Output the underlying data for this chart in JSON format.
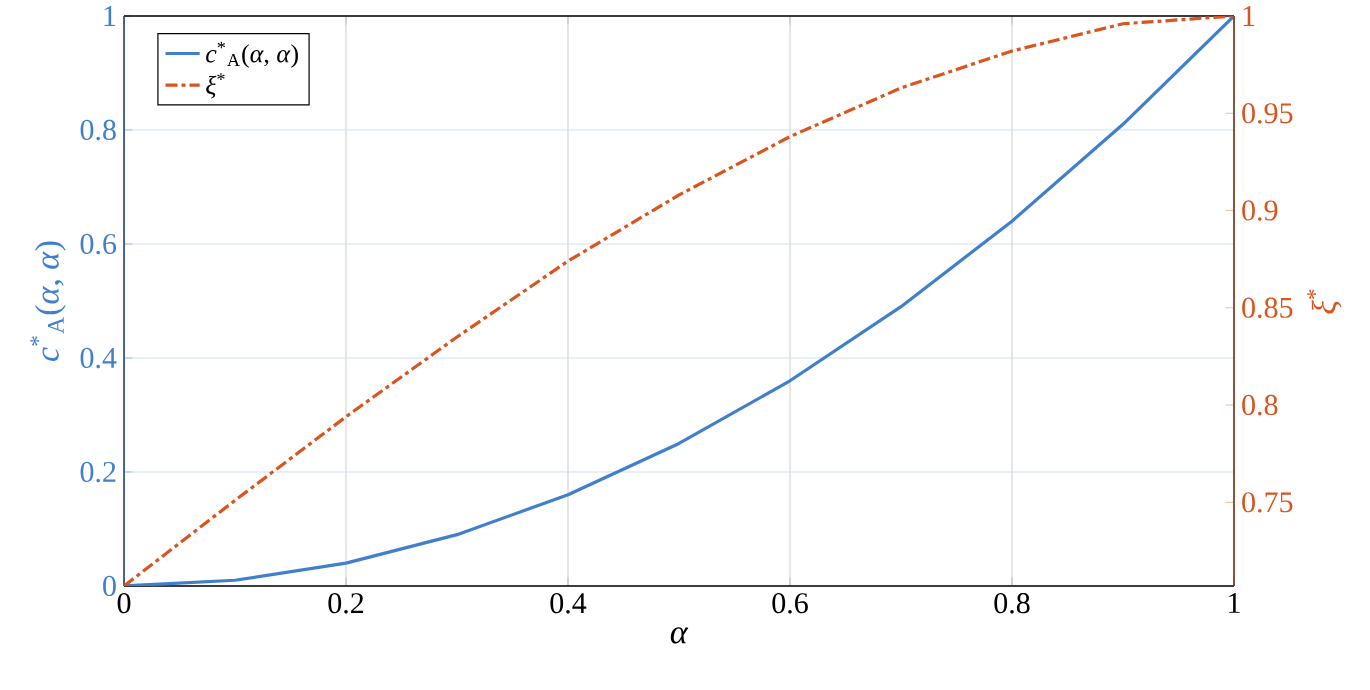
{
  "chart_data": {
    "type": "line",
    "xlabel": "*α*",
    "ylabel": "*c*$^{*}$$_{A}$(*α*, *α*)",
    "y2label": "*ξ*$^{*}$",
    "x": [
      0,
      0.1,
      0.2,
      0.3,
      0.4,
      0.5,
      0.6,
      0.7,
      0.8,
      0.9,
      1
    ],
    "series": [
      {
        "name": "*c*$^{*}$$_{A}$(*α*, *α*)",
        "color": "#3f7fcb",
        "line_style": "solid",
        "values": [
          0,
          0.01,
          0.04,
          0.09,
          0.16,
          0.25,
          0.36,
          0.49,
          0.64,
          0.81,
          1
        ]
      },
      {
        "name": "*ξ*$^{*}$",
        "color": "#d9541e",
        "line_style": "dashdot",
        "axis": "y2",
        "values": [
          0.707,
          0.751,
          0.794,
          0.835,
          0.874,
          0.908,
          0.938,
          0.963,
          0.982,
          0.996,
          1
        ]
      }
    ],
    "xlim": [
      0,
      1
    ],
    "xticks": [
      0,
      0.2,
      0.4,
      0.6,
      0.8,
      1
    ],
    "ylim": [
      0,
      1
    ],
    "yticks": [
      0,
      0.2,
      0.4,
      0.6,
      0.8,
      1
    ],
    "y2lim": [
      0.707,
      1
    ],
    "y2ticks": [
      0.75,
      0.8,
      0.85,
      0.9,
      0.95,
      1
    ],
    "grid": true,
    "legend": "top left",
    "marker": "none"
  }
}
